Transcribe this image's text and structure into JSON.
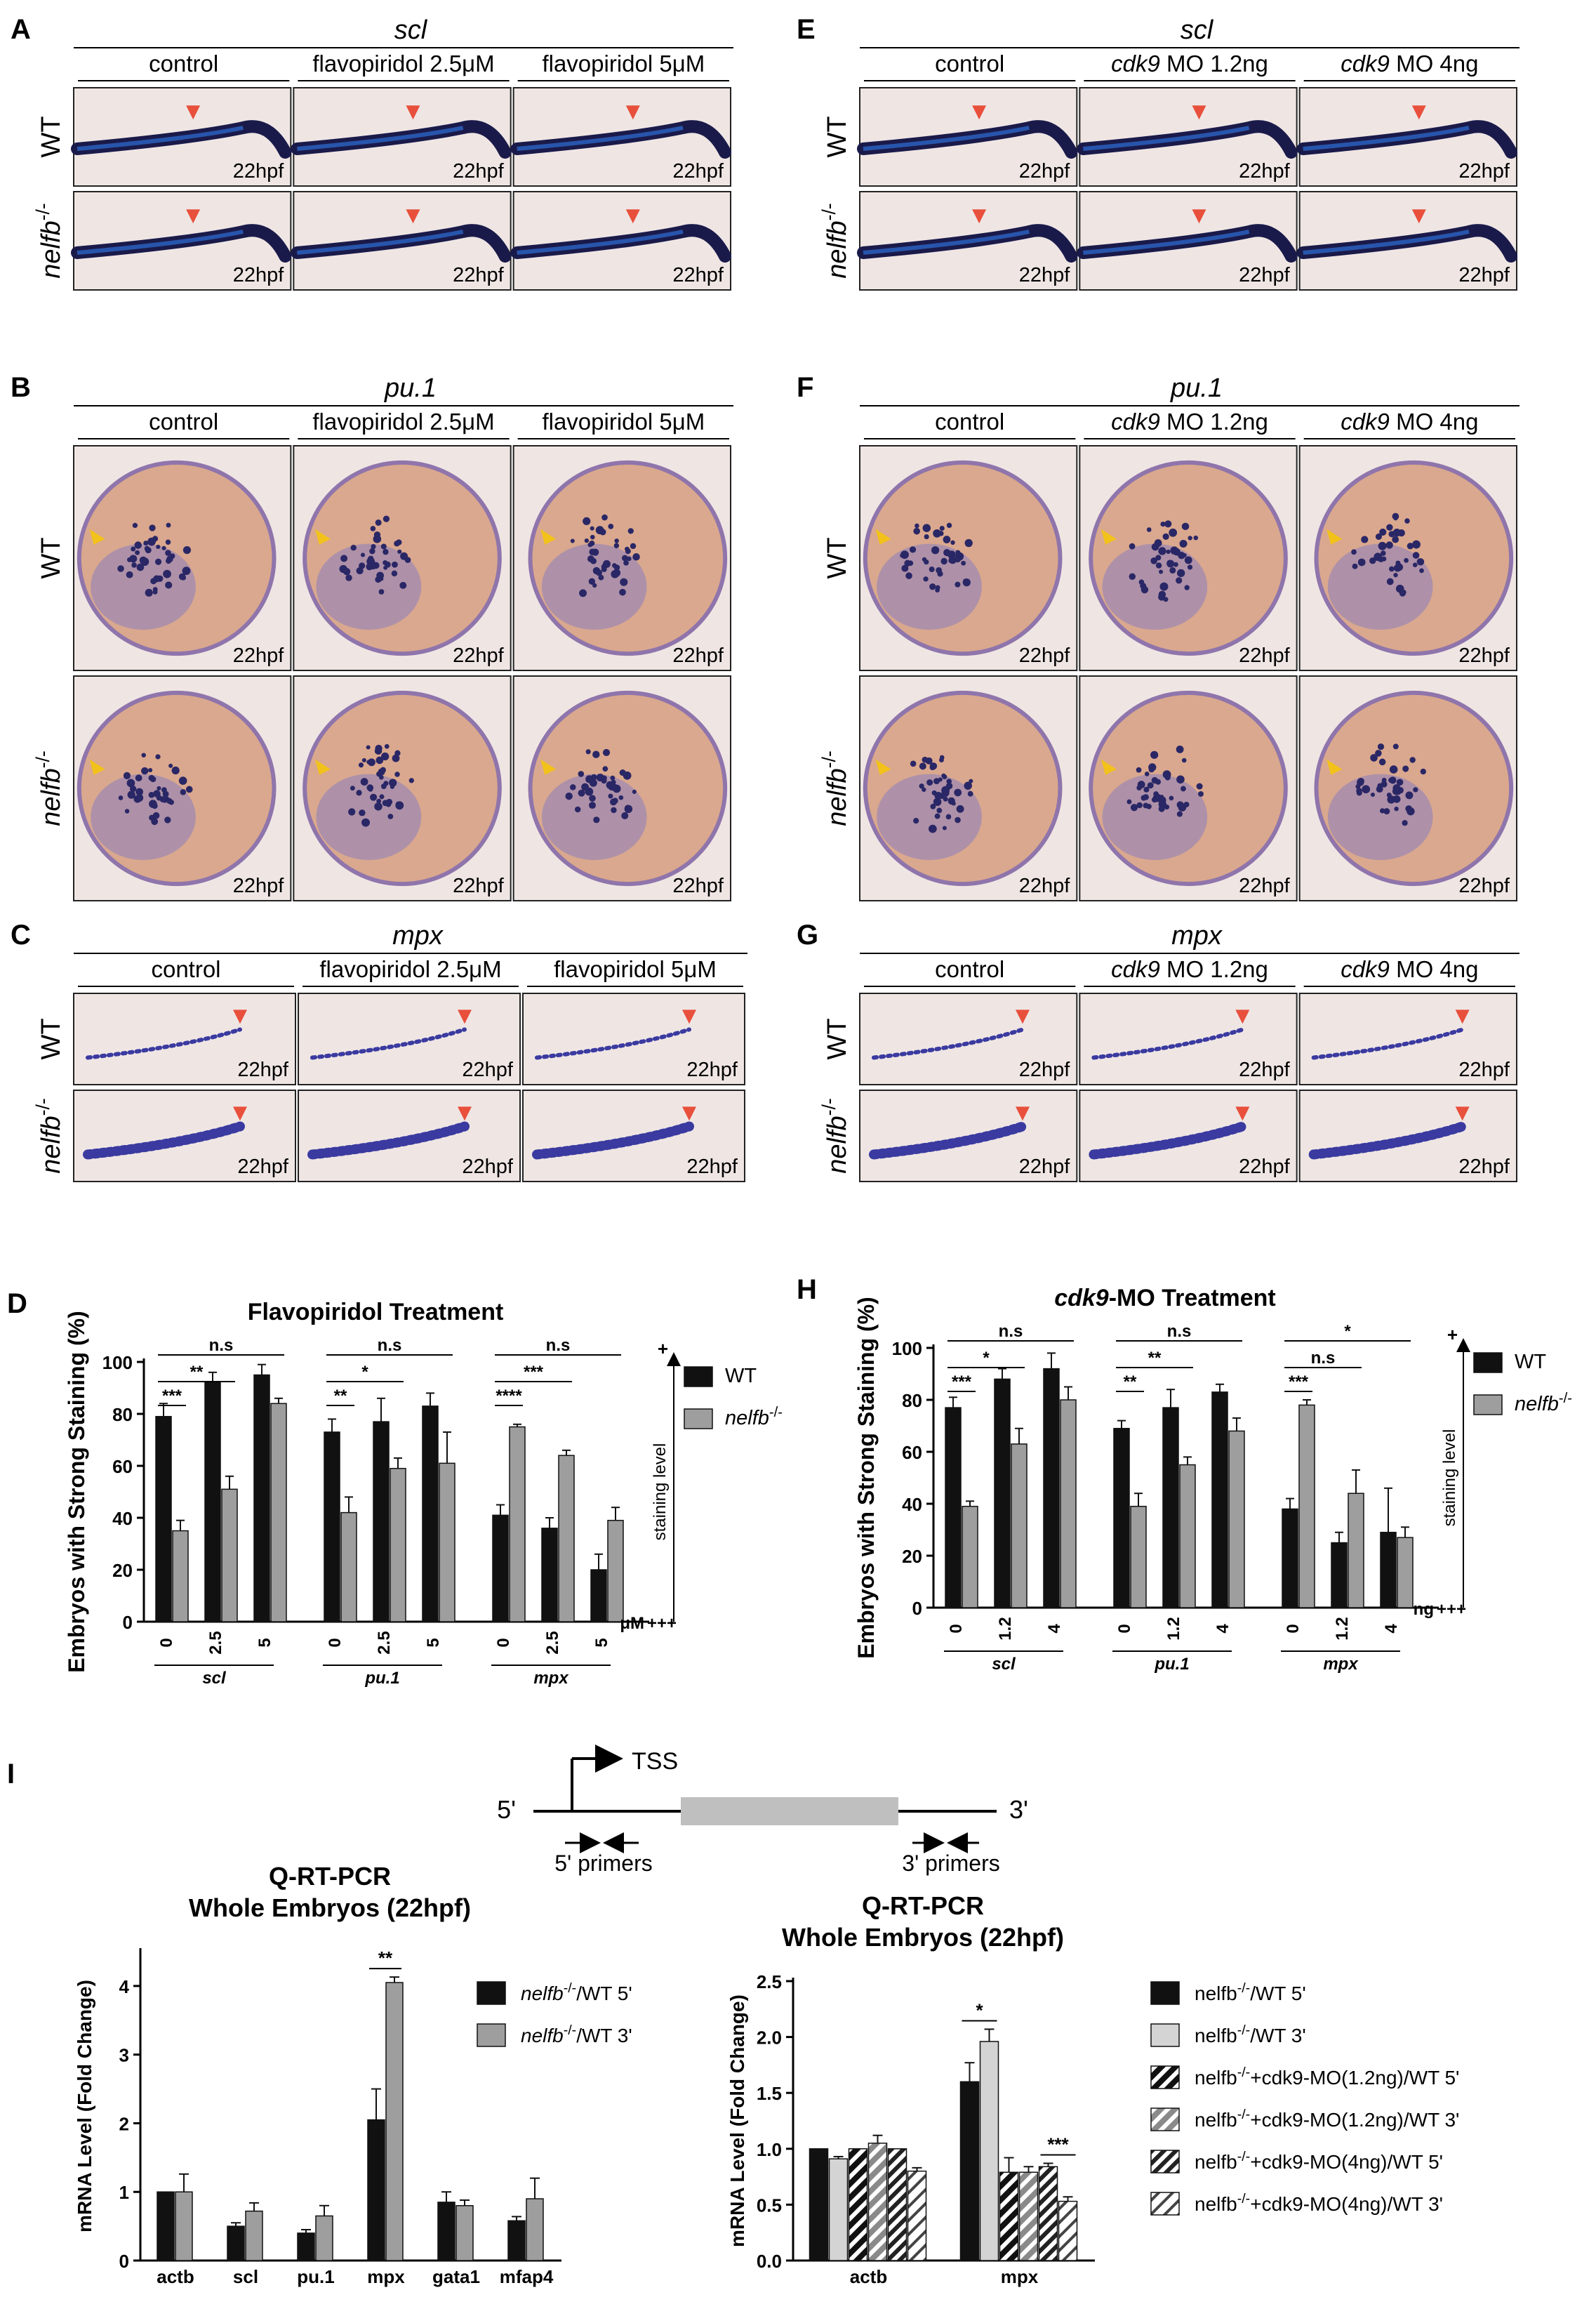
{
  "microscopy": [
    {
      "letter": "A",
      "gene": "scl",
      "kind": "trunk",
      "columns": [
        "control",
        "flavopiridol 2.5μM",
        "flavopiridol 5μM"
      ],
      "italicColumns": false,
      "rows": [
        "WT",
        "nelfb-/-"
      ],
      "stage": "22hpf",
      "arrowColor": "#e8503c"
    },
    {
      "letter": "E",
      "gene": "scl",
      "kind": "trunk",
      "columns": [
        "control",
        "cdk9 MO 1.2ng",
        "cdk9 MO 4ng"
      ],
      "italicColumns": true,
      "rows": [
        "WT",
        "nelfb-/-"
      ],
      "stage": "22hpf",
      "arrowColor": "#e8503c"
    },
    {
      "letter": "B",
      "gene": "pu.1",
      "kind": "yolk",
      "columns": [
        "control",
        "flavopiridol 2.5μM",
        "flavopiridol 5μM"
      ],
      "italicColumns": false,
      "rows": [
        "WT",
        "nelfb-/-"
      ],
      "stage": "22hpf",
      "arrowColor": "#f2c21a"
    },
    {
      "letter": "F",
      "gene": "pu.1",
      "kind": "yolk",
      "columns": [
        "control",
        "cdk9 MO 1.2ng",
        "cdk9 MO 4ng"
      ],
      "italicColumns": true,
      "rows": [
        "WT",
        "nelfb-/-"
      ],
      "stage": "22hpf",
      "arrowColor": "#f2c21a"
    },
    {
      "letter": "C",
      "gene": "mpx",
      "kind": "tail",
      "columns": [
        "control",
        "flavopiridol 2.5μM",
        "flavopiridol 5μM"
      ],
      "italicColumns": false,
      "rows": [
        "WT",
        "nelfb-/-"
      ],
      "stage": "22hpf",
      "arrowColor": "#e8503c"
    },
    {
      "letter": "G",
      "gene": "mpx",
      "kind": "tail",
      "columns": [
        "control",
        "cdk9 MO 1.2ng",
        "cdk9 MO 4ng"
      ],
      "italicColumns": true,
      "rows": [
        "WT",
        "nelfb-/-"
      ],
      "stage": "22hpf",
      "arrowColor": "#e8503c"
    }
  ],
  "chart_data": [
    {
      "panel": "D",
      "type": "bar",
      "title": "Flavopiridol Treatment",
      "ylabel": "Embryos with Strong Staining (%)",
      "ylim": [
        0,
        100
      ],
      "yticks": [
        0,
        20,
        40,
        60,
        80,
        100
      ],
      "groups": [
        "scl",
        "pu.1",
        "mpx"
      ],
      "doses": [
        "0",
        "2.5",
        "5"
      ],
      "unit": "μM",
      "series": [
        {
          "name": "WT",
          "color": "#111111",
          "values": [
            79,
            92,
            95,
            73,
            77,
            83,
            41,
            36,
            20
          ],
          "errors": [
            5,
            4,
            4,
            5,
            9,
            5,
            4,
            4,
            6
          ]
        },
        {
          "name": "nelfb-/-",
          "color": "#9e9e9e",
          "values": [
            35,
            51,
            84,
            42,
            59,
            61,
            75,
            64,
            39
          ],
          "errors": [
            4,
            5,
            2,
            6,
            4,
            12,
            1,
            2,
            5
          ]
        }
      ],
      "brackets": [
        {
          "g": 0,
          "from": 0,
          "to": 2,
          "label": "n.s"
        },
        {
          "g": 0,
          "from": 0,
          "to": 1,
          "label": "**"
        },
        {
          "g": 0,
          "from": 0,
          "to": 0,
          "label": "***"
        },
        {
          "g": 1,
          "from": 0,
          "to": 2,
          "label": "n.s"
        },
        {
          "g": 1,
          "from": 0,
          "to": 1,
          "label": "*"
        },
        {
          "g": 1,
          "from": 0,
          "to": 0,
          "label": "**"
        },
        {
          "g": 2,
          "from": 0,
          "to": 2,
          "label": "n.s"
        },
        {
          "g": 2,
          "from": 0,
          "to": 1,
          "label": "***"
        },
        {
          "g": 2,
          "from": 0,
          "to": 0,
          "label": "****"
        }
      ],
      "staining": {
        "plus": "+",
        "minus": "+++",
        "label": "staining level"
      }
    },
    {
      "panel": "H",
      "type": "bar",
      "title": "cdk9-MO Treatment",
      "titleItalicPart": "cdk9",
      "ylabel": "Embryos with Strong Staining (%)",
      "ylim": [
        0,
        100
      ],
      "yticks": [
        0,
        20,
        40,
        60,
        80,
        100
      ],
      "groups": [
        "scl",
        "pu.1",
        "mpx"
      ],
      "doses": [
        "0",
        "1.2",
        "4"
      ],
      "unit": "ng",
      "series": [
        {
          "name": "WT",
          "color": "#111111",
          "values": [
            77,
            88,
            92,
            69,
            77,
            83,
            38,
            25,
            29
          ],
          "errors": [
            4,
            4,
            6,
            3,
            7,
            3,
            4,
            4,
            17
          ]
        },
        {
          "name": "nelfb-/-",
          "color": "#9e9e9e",
          "values": [
            39,
            63,
            80,
            39,
            55,
            68,
            78,
            44,
            27
          ],
          "errors": [
            2,
            6,
            5,
            5,
            3,
            5,
            2,
            9,
            4
          ]
        }
      ],
      "brackets": [
        {
          "g": 0,
          "from": 0,
          "to": 2,
          "label": "n.s"
        },
        {
          "g": 0,
          "from": 0,
          "to": 1,
          "label": "*"
        },
        {
          "g": 0,
          "from": 0,
          "to": 0,
          "label": "***"
        },
        {
          "g": 1,
          "from": 0,
          "to": 2,
          "label": "n.s"
        },
        {
          "g": 1,
          "from": 0,
          "to": 1,
          "label": "**"
        },
        {
          "g": 1,
          "from": 0,
          "to": 0,
          "label": "**"
        },
        {
          "g": 2,
          "from": 0,
          "to": 2,
          "label": "*"
        },
        {
          "g": 2,
          "from": 0,
          "to": 1,
          "label": "n.s"
        },
        {
          "g": 2,
          "from": 0,
          "to": 0,
          "label": "***"
        }
      ],
      "staining": {
        "plus": "+",
        "minus": "+++",
        "label": "staining level"
      }
    },
    {
      "panel": "I-left",
      "type": "bar",
      "title": "Q-RT-PCR",
      "subtitle": "Whole Embryos (22hpf)",
      "ylabel": "mRNA Level (Fold Change)",
      "ylim": [
        0,
        4.5
      ],
      "yticks": [
        0,
        1,
        2,
        3,
        4
      ],
      "categories": [
        "actb",
        "scl",
        "pu.1",
        "mpx",
        "gata1",
        "mfap4"
      ],
      "series": [
        {
          "name": "nelfb-/-/WT 5'",
          "color": "#111111",
          "values": [
            1.0,
            0.5,
            0.4,
            2.05,
            0.85,
            0.58
          ],
          "errors": [
            0,
            0.05,
            0.05,
            0.45,
            0.15,
            0.06
          ]
        },
        {
          "name": "nelfb-/-/WT 3'",
          "color": "#9e9e9e",
          "values": [
            1.0,
            0.72,
            0.65,
            4.05,
            0.8,
            0.9
          ],
          "errors": [
            0.26,
            0.12,
            0.15,
            0.08,
            0.08,
            0.3
          ]
        }
      ],
      "annotations": [
        {
          "category": 3,
          "label": "**"
        }
      ]
    },
    {
      "panel": "I-right",
      "type": "bar",
      "title": "Q-RT-PCR",
      "subtitle": "Whole Embryos (22hpf)",
      "ylabel": "mRNA Level (Fold Change)",
      "ylim": [
        0,
        2.5
      ],
      "yticks": [
        0.0,
        0.5,
        1.0,
        1.5,
        2.0,
        2.5
      ],
      "categories": [
        "actb",
        "mpx"
      ],
      "series": [
        {
          "name": "nelfb-/-/WT 5'",
          "fill": "solid-dark",
          "values": [
            1.0,
            1.6
          ],
          "errors": [
            0,
            0.17
          ]
        },
        {
          "name": "nelfb-/-/WT 3'",
          "fill": "solid-light",
          "values": [
            0.91,
            1.96
          ],
          "errors": [
            0.02,
            0.11
          ]
        },
        {
          "name": "nelfb-/-+cdk9-MO(1.2ng)/WT 5'",
          "fill": "hatch-dark",
          "values": [
            1.0,
            0.79
          ],
          "errors": [
            0,
            0.13
          ]
        },
        {
          "name": "nelfb-/-+cdk9-MO(1.2ng)/WT 3'",
          "fill": "hatch-grey",
          "values": [
            1.05,
            0.79
          ],
          "errors": [
            0.07,
            0.05
          ]
        },
        {
          "name": "nelfb-/-+cdk9-MO(4ng)/WT 5'",
          "fill": "hatch-dark2",
          "values": [
            1.0,
            0.84
          ],
          "errors": [
            0,
            0.03
          ]
        },
        {
          "name": "nelfb-/-+cdk9-MO(4ng)/WT 3'",
          "fill": "hatch-light",
          "values": [
            0.8,
            0.53
          ],
          "errors": [
            0.03,
            0.04
          ]
        }
      ],
      "annotations": [
        {
          "category": 1,
          "from": 0,
          "to": 1,
          "label": "*"
        },
        {
          "category": 1,
          "from": 4,
          "to": 5,
          "label": "***"
        }
      ]
    }
  ],
  "schematic": {
    "letter": "I",
    "tss": "TSS",
    "five": "5'",
    "three": "3'",
    "primer5": "5' primers",
    "primer3": "3' primers"
  }
}
